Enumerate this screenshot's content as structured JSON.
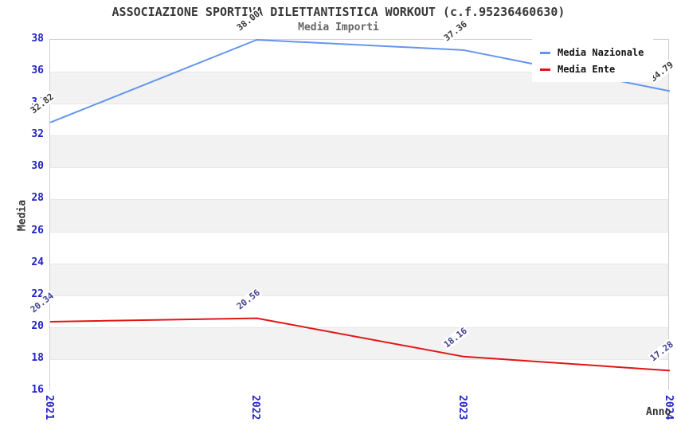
{
  "header": {
    "title": "ASSOCIAZIONE SPORTIVA DILETTANTISTICA WORKOUT (c.f.95236460630)",
    "subtitle": "Media Importi"
  },
  "colors": {
    "nazionale_line": "#6495ED",
    "ente_line": "#E01616",
    "tick_label": "#2323C8",
    "band_gray": "#F2F2F2",
    "band_white": "#FFFFFF",
    "nazionale_value_label": "#3A3A3A",
    "ente_value_label": "#3F3F8F"
  },
  "chart_data": {
    "type": "line",
    "title": "ASSOCIAZIONE SPORTIVA DILETTANTISTICA WORKOUT (c.f.95236460630)",
    "subtitle": "Media Importi",
    "xlabel": "Anno",
    "ylabel": "Media",
    "categories": [
      "2021",
      "2022",
      "2023",
      "2024"
    ],
    "series": [
      {
        "name": "Media Nazionale",
        "color": "#6495ED",
        "label_color": "#3A3A3A",
        "values": [
          32.82,
          38.0,
          37.36,
          34.79
        ],
        "labels": [
          "32.82",
          "38.00",
          "37.36",
          "34.79"
        ]
      },
      {
        "name": "Media Ente",
        "color": "#E01616",
        "label_color": "#3F3F8F",
        "values": [
          20.34,
          20.56,
          18.16,
          17.28
        ],
        "labels": [
          "20.34",
          "20.56",
          "18.16",
          "17.28"
        ]
      }
    ],
    "ylim": [
      16,
      38
    ],
    "ytick_step": 2,
    "yticks": [
      "16",
      "18",
      "20",
      "22",
      "24",
      "26",
      "28",
      "30",
      "32",
      "34",
      "36",
      "38"
    ],
    "grid": "horizontal-bands",
    "legend_position": "top-right"
  }
}
